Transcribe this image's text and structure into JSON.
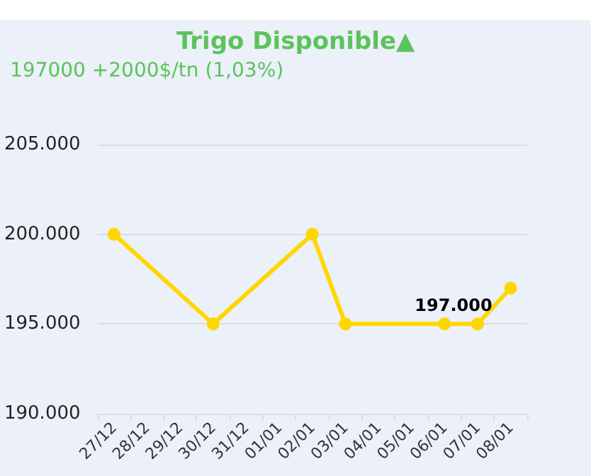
{
  "chart_data": {
    "type": "line",
    "title": "Trigo Disponible▲",
    "subtitle": "197000 +2000$/tn (1,03%)",
    "categories": [
      "27/12",
      "28/12",
      "29/12",
      "30/12",
      "31/12",
      "01/01",
      "02/01",
      "03/01",
      "04/01",
      "05/01",
      "06/01",
      "07/01",
      "08/01"
    ],
    "series": [
      {
        "color": "#ffd700",
        "values": [
          200000,
          null,
          null,
          195000,
          null,
          null,
          200000,
          195000,
          null,
          null,
          195000,
          195000,
          197000
        ]
      }
    ],
    "ylim": [
      190000,
      205000
    ],
    "yticks": [
      {
        "value": 190000,
        "label": "190.000"
      },
      {
        "value": 195000,
        "label": "195.000"
      },
      {
        "value": 200000,
        "label": "200.000"
      },
      {
        "value": 205000,
        "label": "205.000"
      }
    ],
    "annotations": [
      {
        "text": "197.000",
        "x": "08/01",
        "y": 197000
      }
    ],
    "grid": "y",
    "marker": "circle",
    "line_style": "solid"
  }
}
